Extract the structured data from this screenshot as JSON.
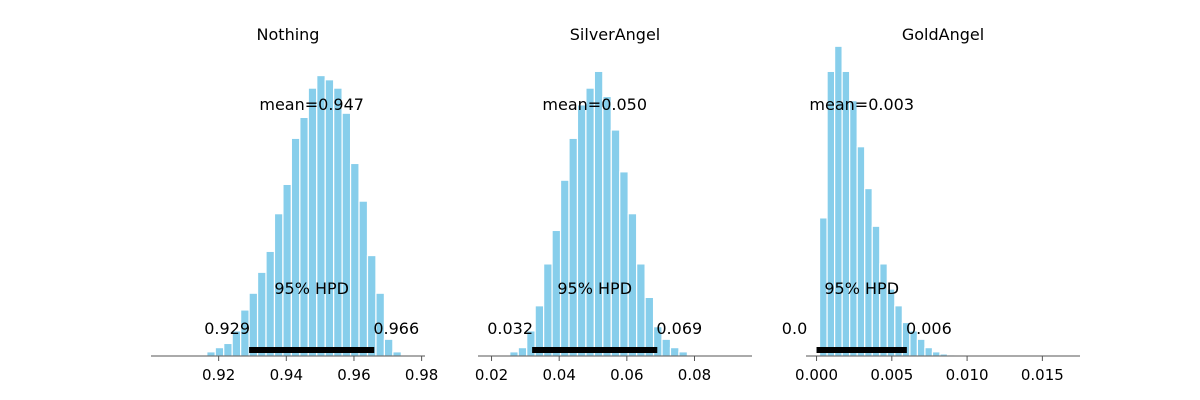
{
  "chart_data": [
    {
      "type": "bar",
      "title": "Nothing",
      "mean_label": "mean=0.947",
      "hpd_label": "95% HPD",
      "hpd_low_label": "0.929",
      "hpd_high_label": "0.966",
      "hpd": [
        0.929,
        0.966
      ],
      "xlim": [
        0.9,
        0.981
      ],
      "xticks": [
        0.92,
        0.94,
        0.96,
        0.98
      ],
      "xtick_labels": [
        "0.92",
        "0.94",
        "0.96",
        "0.98"
      ],
      "bin_start": 0.9165,
      "bin_width": 0.0025,
      "values": [
        1,
        2,
        3,
        6,
        11,
        15,
        20,
        25,
        34,
        41,
        52,
        57,
        64,
        67,
        66,
        64,
        58,
        46,
        37,
        24,
        15,
        4,
        1
      ],
      "ylim": [
        0,
        70
      ],
      "color": "#87ceeb"
    },
    {
      "type": "bar",
      "title": "SilverAngel",
      "mean_label": "mean=0.050",
      "hpd_label": "95% HPD",
      "hpd_low_label": "0.032",
      "hpd_high_label": "0.069",
      "hpd": [
        0.032,
        0.069
      ],
      "xlim": [
        0.016,
        0.097
      ],
      "xticks": [
        0.02,
        0.04,
        0.06,
        0.08
      ],
      "xtick_labels": [
        "0.02",
        "0.04",
        "0.06",
        "0.08"
      ],
      "bin_start": 0.0254,
      "bin_width": 0.0025,
      "values": [
        1,
        2,
        6,
        12,
        22,
        30,
        42,
        52,
        60,
        64,
        68,
        62,
        54,
        44,
        34,
        22,
        14,
        7,
        4,
        2,
        1
      ],
      "ylim": [
        0,
        70
      ],
      "color": "#87ceeb"
    },
    {
      "type": "bar",
      "title": "GoldAngel",
      "mean_label": "mean=0.003",
      "hpd_label": "95% HPD",
      "hpd_low_label": "0.0",
      "hpd_high_label": "0.006",
      "hpd": [
        0.0,
        0.006
      ],
      "xlim": [
        -0.0007,
        0.0175
      ],
      "xticks": [
        0.0,
        0.005,
        0.01,
        0.015
      ],
      "xtick_labels": [
        "0.000",
        "0.005",
        "0.010",
        "0.015"
      ],
      "bin_start": 0.0002,
      "bin_width": 0.0005,
      "values": [
        33,
        68,
        74,
        68,
        61,
        50,
        40,
        31,
        22,
        16,
        12,
        8,
        6,
        4,
        2,
        1,
        0.5,
        0.3,
        0.2
      ],
      "ylim": [
        0,
        70
      ],
      "color": "#87ceeb"
    }
  ]
}
